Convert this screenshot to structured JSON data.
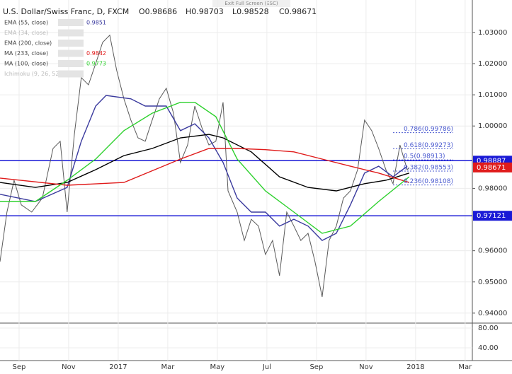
{
  "chart_data": {
    "type": "line",
    "title": "U.S. Dollar/Swiss Franc, D, FXCM",
    "ohlc_labels": [
      "O0.98686",
      "H0.98703",
      "L0.98528",
      "C0.98671"
    ],
    "exit_label": "Exit Full Screen (ESC)",
    "xlim": [
      -0.77,
      18.29
    ],
    "xticks": [
      {
        "value": 0,
        "label": "Sep"
      },
      {
        "value": 2,
        "label": "Nov"
      },
      {
        "value": 4,
        "label": "2017"
      },
      {
        "value": 6,
        "label": "Mar"
      },
      {
        "value": 8,
        "label": "May"
      },
      {
        "value": 10,
        "label": "Jul"
      },
      {
        "value": 12,
        "label": "Sep"
      },
      {
        "value": 14,
        "label": "Nov"
      },
      {
        "value": 16,
        "label": "2018"
      },
      {
        "value": 18,
        "label": "Mar"
      }
    ],
    "ylim": [
      0.9368,
      1.0404
    ],
    "yticks": [
      {
        "value": 1.03,
        "label": "1.03000"
      },
      {
        "value": 1.02,
        "label": "1.02000"
      },
      {
        "value": 1.01,
        "label": "1.01000"
      },
      {
        "value": 1.0,
        "label": "1.00000"
      },
      {
        "value": 0.98,
        "label": "0.98000"
      },
      {
        "value": 0.96,
        "label": "0.96000"
      },
      {
        "value": 0.95,
        "label": "0.95000"
      },
      {
        "value": 0.94,
        "label": "0.94000"
      }
    ],
    "series": [
      {
        "name": "USDCHF",
        "color": "#5a5a5a",
        "x": [
          -0.77,
          -0.49,
          -0.2,
          0.09,
          0.51,
          0.94,
          1.37,
          1.66,
          1.94,
          2.23,
          2.51,
          2.8,
          3.09,
          3.37,
          3.66,
          3.94,
          4.23,
          4.51,
          4.8,
          5.09,
          5.37,
          5.66,
          5.94,
          6.23,
          6.51,
          6.8,
          7.09,
          7.37,
          7.66,
          7.94,
          8.23,
          8.43,
          8.8,
          9.09,
          9.37,
          9.66,
          9.94,
          10.23,
          10.51,
          10.8,
          11.09,
          11.37,
          11.66,
          11.94,
          12.23,
          12.51,
          12.8,
          13.09,
          13.37,
          13.66,
          13.94,
          14.23,
          14.51,
          14.8,
          15.09,
          15.37,
          15.66,
          15.74
        ],
        "values": [
          0.9565,
          0.9724,
          0.9826,
          0.9747,
          0.9724,
          0.9769,
          0.9928,
          0.9951,
          0.9724,
          0.9973,
          1.0155,
          1.0132,
          1.02,
          1.0268,
          1.0291,
          1.0178,
          1.0087,
          1.0019,
          0.9962,
          0.9951,
          1.0019,
          1.0087,
          1.0121,
          1.0041,
          0.9883,
          0.9939,
          1.0064,
          0.9996,
          0.9939,
          0.9951,
          1.0076,
          0.9792,
          0.9724,
          0.9633,
          0.9701,
          0.9679,
          0.9588,
          0.9633,
          0.952,
          0.9724,
          0.9679,
          0.9633,
          0.9656,
          0.9565,
          0.9452,
          0.9633,
          0.9679,
          0.9769,
          0.9792,
          0.986,
          1.0019,
          0.9985,
          0.9928,
          0.986,
          0.9815,
          0.9939,
          0.986,
          0.9867
        ]
      },
      {
        "name": "EMA (55, close)",
        "legend_value": "0.9851",
        "color": "#3a3a9e",
        "x": [
          -0.77,
          0.66,
          1.94,
          2.51,
          3.09,
          3.51,
          4.51,
          5.09,
          5.94,
          6.51,
          7.09,
          7.66,
          8.23,
          8.8,
          9.37,
          9.94,
          10.51,
          11.09,
          11.66,
          12.23,
          12.8,
          13.37,
          13.94,
          14.51,
          15.09,
          15.66
        ],
        "values": [
          0.9781,
          0.9758,
          0.9803,
          0.9951,
          1.0064,
          1.0098,
          1.0087,
          1.0064,
          1.0064,
          0.9985,
          1.0007,
          0.9962,
          0.9883,
          0.9769,
          0.9724,
          0.9724,
          0.9679,
          0.9701,
          0.9679,
          0.9633,
          0.9656,
          0.9747,
          0.9849,
          0.9871,
          0.9837,
          0.9871
        ]
      },
      {
        "name": "EMA (34, close)",
        "color": "#c0c0c0",
        "x": [],
        "values": []
      },
      {
        "name": "EMA (200, close)",
        "color": "#000000",
        "x": [
          -0.77,
          0.66,
          1.94,
          3.09,
          4.23,
          5.37,
          6.51,
          7.66,
          8.23,
          9.37,
          10.51,
          11.66,
          12.8,
          13.94,
          14.8,
          15.74
        ],
        "values": [
          0.9819,
          0.9803,
          0.9819,
          0.986,
          0.9905,
          0.9928,
          0.9962,
          0.9973,
          0.9962,
          0.9917,
          0.9837,
          0.9803,
          0.9792,
          0.9815,
          0.9826,
          0.9849
        ]
      },
      {
        "name": "MA (233, close)",
        "legend_value": "0.9842",
        "color": "#e01b1b",
        "x": [
          -0.77,
          1.94,
          4.23,
          6.51,
          7.66,
          8.8,
          9.94,
          11.09,
          12.23,
          13.37,
          14.51,
          15.74
        ],
        "values": [
          0.9833,
          0.981,
          0.9819,
          0.9894,
          0.9928,
          0.9928,
          0.9924,
          0.9917,
          0.9894,
          0.9871,
          0.9849,
          0.9819
        ]
      },
      {
        "name": "MA (100, close)",
        "legend_value": "0.9773",
        "color": "#2ed12e",
        "x": [
          -0.77,
          0.66,
          1.94,
          3.09,
          4.23,
          5.37,
          6.51,
          7.09,
          7.94,
          8.8,
          9.94,
          11.09,
          12.23,
          13.37,
          14.51,
          15.74
        ],
        "values": [
          0.9758,
          0.9758,
          0.9826,
          0.9894,
          0.9985,
          1.0041,
          1.0076,
          1.0076,
          1.003,
          0.9894,
          0.9792,
          0.9724,
          0.9656,
          0.9679,
          0.9758,
          0.9837
        ]
      },
      {
        "name": "Ichimoku (9, 26, 52, 26)",
        "color": "#c0c0c0",
        "x": [],
        "values": []
      }
    ],
    "hlines": [
      {
        "value": 0.98887,
        "label": "0.98887",
        "color": "#1a1ad6"
      },
      {
        "value": 0.97121,
        "label": "0.97121",
        "color": "#1a1ad6"
      }
    ],
    "last_price": {
      "value": 0.98671,
      "label": "0.98671",
      "color": "#e01b1b"
    },
    "fib_color": "#4a5ad0",
    "fib_levels": [
      {
        "value": 0.99786,
        "label": "0.786(0.99786)"
      },
      {
        "value": 0.99273,
        "label": "0.618(0.99273)"
      },
      {
        "value": 0.98913,
        "label": "0.5(0.98913)"
      },
      {
        "value": 0.98553,
        "label": "0.382(0.98553)"
      },
      {
        "value": 0.98108,
        "label": "0.236(0.98108)"
      }
    ],
    "indicator_pane": {
      "ylim": [
        14.3,
        90
      ],
      "yticks": [
        {
          "value": 80,
          "label": "80.00"
        },
        {
          "value": 40,
          "label": "40.00"
        }
      ]
    }
  }
}
